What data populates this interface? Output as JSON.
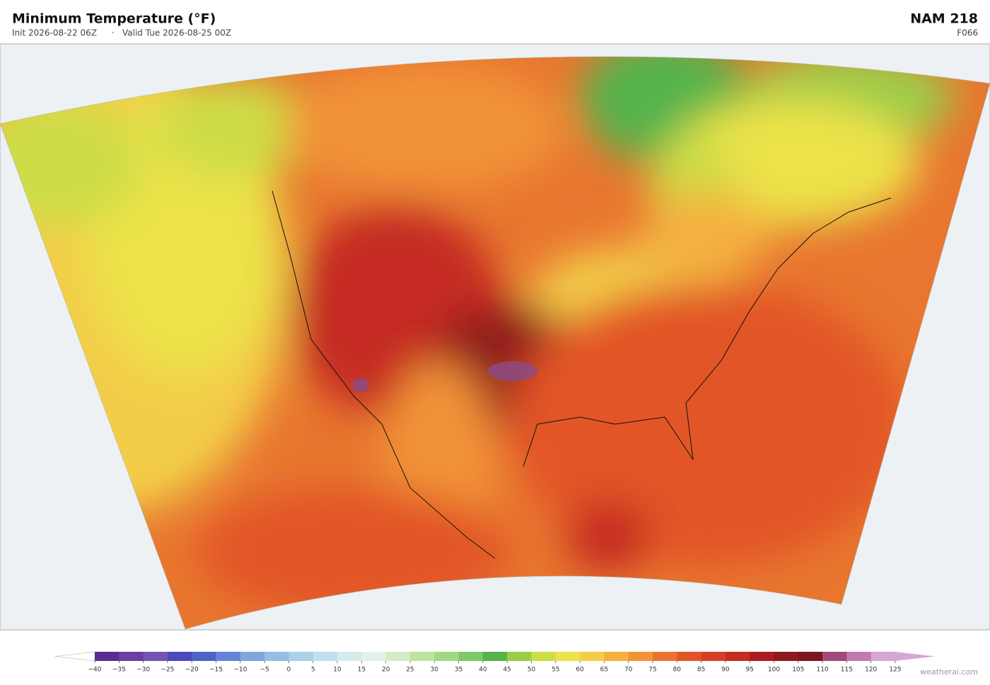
{
  "header": {
    "title": "Minimum Temperature  (°F)",
    "init": "Init 2026-08-22 06Z",
    "separator": "·",
    "valid": "Valid Tue 2026-08-25 00Z",
    "model": "NAM  218",
    "forecast_hour": "F066"
  },
  "colorbar": {
    "ticks": [
      {
        "value": -40,
        "label": "−40"
      },
      {
        "value": -35,
        "label": "−35"
      },
      {
        "value": -30,
        "label": "−30"
      },
      {
        "value": -25,
        "label": "−25"
      },
      {
        "value": -20,
        "label": "−20"
      },
      {
        "value": -15,
        "label": "−15"
      },
      {
        "value": -10,
        "label": "−10"
      },
      {
        "value": -5,
        "label": "−5"
      },
      0,
      5,
      10,
      15,
      20,
      25,
      30,
      35,
      40,
      45,
      50,
      55,
      60,
      65,
      70,
      75,
      80,
      85,
      90,
      95,
      100,
      105,
      110,
      115,
      120,
      125
    ],
    "colors": [
      "#5a2d8f",
      "#6b3fa0",
      "#7553b0",
      "#4a4ab8",
      "#4f63c9",
      "#6384d6",
      "#7ea6dd",
      "#94bfe3",
      "#a9d1e8",
      "#c0e0ec",
      "#d5ebef",
      "#e3f1ea",
      "#d4ebc3",
      "#bce3a0",
      "#a1d884",
      "#7dc867",
      "#55b34c",
      "#9ccc4a",
      "#cddd47",
      "#ece24a",
      "#f3cd48",
      "#f4b13f",
      "#f19337",
      "#ea742f",
      "#e25528",
      "#d63f24",
      "#c42c22",
      "#a81d1f",
      "#8f1a1e",
      "#7a1720",
      "#a04b7c",
      "#c17bb0",
      "#d7a6d3"
    ],
    "under_color": "#ffffff",
    "over_color": "#d7a6d3"
  },
  "footer": {
    "credit": "weatherai.com"
  }
}
